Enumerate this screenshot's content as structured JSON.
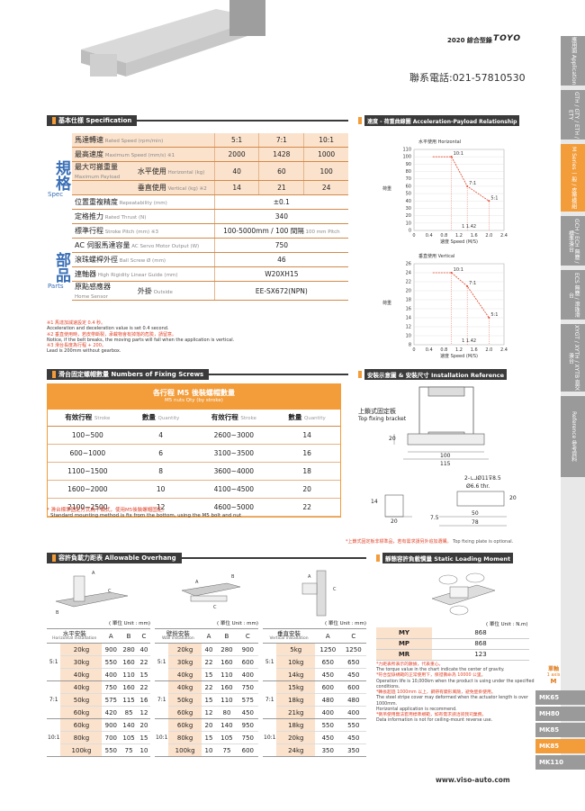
{
  "header": {
    "catalog": "2020 綜合型錄",
    "brand": "TOYO",
    "phone": "聯系電話:021-57810530",
    "website": "www.viso-auto.com"
  },
  "sidebar_tabs": [
    {
      "label": "應用面 Application",
      "active": false
    },
    {
      "label": "GTH / GTY / ETH / ETY",
      "active": false
    },
    {
      "label": "M Series 一般 / 皮帶模組",
      "active": true
    },
    {
      "label": "GCH / ECH 無塵 / 標準滑台",
      "active": false
    },
    {
      "label": "ECS 無塵 / 滾珠滑台",
      "active": false
    },
    {
      "label": "XYGT / XYTH / XYTB 直交滑台",
      "active": false
    },
    {
      "label": "Reference 參考資料",
      "active": false
    }
  ],
  "model_tabs": [
    {
      "label": "MK65",
      "active": false
    },
    {
      "label": "MH80",
      "active": false
    },
    {
      "label": "MK85",
      "active": false
    },
    {
      "label": "MK85",
      "active": true
    },
    {
      "label": "MK110",
      "active": false
    }
  ],
  "spec": {
    "title": "基本仕樣 Specification",
    "group1": "規格",
    "group1_en": "Spec",
    "group2": "部品",
    "group2_en": "Parts",
    "rows": [
      {
        "label": "馬達轉速",
        "en": "Rated Speed (rpm/min)",
        "values": [
          "5:1",
          "7:1",
          "10:1"
        ]
      },
      {
        "label": "最高速度",
        "en": "Maximum Speed (mm/s) ※1",
        "values": [
          "2000",
          "1428",
          "1000"
        ]
      },
      {
        "label": "最大可搬重量",
        "en": "Maximum Payload",
        "sub": "水平使用",
        "sub_en": "Horizontal (kg)",
        "values": [
          "40",
          "60",
          "100"
        ]
      },
      {
        "label": "",
        "en": "",
        "sub": "垂直使用",
        "sub_en": "Vertical (kg) ※2",
        "values": [
          "14",
          "21",
          "24"
        ]
      },
      {
        "label": "位置重複精度",
        "en": "Repeatability (mm)",
        "value": "±0.1"
      },
      {
        "label": "定格推力",
        "en": "Rated Thrust (N)",
        "value": "340"
      },
      {
        "label": "標準行程",
        "en": "Stroke Pitch (mm) ※3",
        "value": "100-5000mm / 100 間隔",
        "value_en": "100 mm Pitch"
      },
      {
        "label": "AC 伺服馬達容量",
        "en": "AC Servo Motor Output (W)",
        "value": "750"
      },
      {
        "label": "滾珠螺桿外徑",
        "en": "Ball Screw Ø (mm)",
        "value": "46"
      },
      {
        "label": "連軸器",
        "en": "High Rigidity Linear Guide (mm)",
        "value": "W20XH15"
      },
      {
        "label": "原點感應器",
        "en": "Home Sensor",
        "sub": "外掛",
        "sub_en": "Outside",
        "value": "EE-SX672(NPN)"
      }
    ],
    "notes": [
      "※1 馬達加減速設定 0.4 秒。",
      "Acceleration and deceleration value is set 0.4 second.",
      "※2 垂直使用時，若皮帶斷裂，承載物會有掉落的危險，請留意。",
      "Notice, if the belt breaks, the moving parts will fall when the application is vertical.",
      "※3 滑台長度為行程 + 200。",
      "Lead is 200mm without gearbox."
    ]
  },
  "fixing": {
    "title": "滑台固定螺帽數量 Numbers of Fixing Screws",
    "head": "各行程 M5 後裝螺帽數量",
    "head_en": "M5 nuts Qty (by stroke)",
    "col_stroke": "有效行程",
    "col_stroke_en": "Stroke",
    "col_qty": "數量",
    "col_qty_en": "Quantity",
    "rows": [
      [
        "100~500",
        "4",
        "2600~3000",
        "14"
      ],
      [
        "600~1000",
        "6",
        "3100~3500",
        "16"
      ],
      [
        "1100~1500",
        "8",
        "3600~4000",
        "18"
      ],
      [
        "1600~2000",
        "10",
        "4100~4500",
        "20"
      ],
      [
        "2100~2500",
        "12",
        "4600~5000",
        "22"
      ]
    ],
    "note": "* 滑台標準固定方式為下鎖式，使用M5後裝螺帽固定。",
    "note_en": "Standard mounting method is fix from the bottom, using the M5 bolt and nut"
  },
  "chart": {
    "title": "速度 - 荷重曲線圖 Acceleration-Payload Relationship",
    "ylabel": "荷重",
    "ylabel_en": "Payload(kg)",
    "xlabel": "速度",
    "xlabel_en": "Speed (M/S)"
  },
  "chart_data": [
    {
      "type": "line",
      "title": "水平使用",
      "subtitle": "Horizontal",
      "xlabel": "速度 Speed (M/S)",
      "ylabel": "荷重 Payload(kg)",
      "x_ticks": [
        "0",
        "0.4",
        "0.8",
        "1.2",
        "1.6",
        "2.0",
        "2.4"
      ],
      "y_ticks": [
        "0",
        "10",
        "20",
        "30",
        "40",
        "50",
        "60",
        "70",
        "80",
        "90",
        "100",
        "110"
      ],
      "xlim": [
        0,
        2.4
      ],
      "ylim": [
        0,
        110
      ],
      "point_labels": [
        "10:1",
        "7:1",
        "5:1"
      ],
      "drop_labels": [
        "1",
        "1.42",
        "2"
      ],
      "series": [
        {
          "points": [
            [
              0.5,
              100
            ],
            [
              1.0,
              100
            ],
            [
              1.42,
              60
            ],
            [
              2.0,
              40
            ]
          ]
        }
      ]
    },
    {
      "type": "line",
      "title": "垂直使用",
      "subtitle": "Vertical",
      "xlabel": "速度 Speed (M/S)",
      "ylabel": "荷重 Payload(kg)",
      "x_ticks": [
        "0",
        "0.4",
        "0.8",
        "1.2",
        "1.6",
        "2.0",
        "2.4"
      ],
      "y_ticks": [
        "8",
        "10",
        "12",
        "14",
        "16",
        "18",
        "20",
        "22",
        "24",
        "26"
      ],
      "xlim": [
        0,
        2.4
      ],
      "ylim": [
        8,
        26
      ],
      "point_labels": [
        "10:1",
        "7:1",
        "5:1"
      ],
      "drop_labels": [
        "1",
        "1.42",
        "2"
      ],
      "series": [
        {
          "points": [
            [
              0.5,
              24
            ],
            [
              1.0,
              24
            ],
            [
              1.42,
              21
            ],
            [
              2.0,
              14
            ]
          ]
        }
      ]
    }
  ],
  "install": {
    "title": "安裝示意圖 & 安裝尺寸 Installation Reference",
    "bracket_label": "上鎖式固定板",
    "bracket_en": "Top fixing bracket",
    "dims": [
      "20",
      "100",
      "115",
      "14",
      "20",
      "7.5",
      "50",
      "78",
      "20"
    ],
    "hole_label": "2-∟⅃Ø11⊽8.5",
    "hole_sub": "Ø6.6 thr.",
    "note": "*上鎖式固定板非標準品，若有需求請另外追加選購。",
    "note_en": "Top fixing plate is optional."
  },
  "overhang": {
    "title": "容許負載力距表 Allowable Overhang",
    "unit": "( 單位 Unit : mm)",
    "tables": [
      {
        "name": "水平安裝",
        "name_en": "Horizontal installation",
        "cols": [
          "A",
          "B",
          "C"
        ],
        "groups": [
          {
            "ratio": "5:1",
            "rows": [
              [
                "20kg",
                "900",
                "280",
                "40"
              ],
              [
                "30kg",
                "550",
                "160",
                "22"
              ],
              [
                "40kg",
                "400",
                "110",
                "15"
              ]
            ]
          },
          {
            "ratio": "7:1",
            "rows": [
              [
                "40kg",
                "750",
                "160",
                "22"
              ],
              [
                "50kg",
                "575",
                "115",
                "16"
              ],
              [
                "60kg",
                "420",
                "85",
                "12"
              ]
            ]
          },
          {
            "ratio": "10:1",
            "rows": [
              [
                "60kg",
                "900",
                "140",
                "20"
              ],
              [
                "80kg",
                "700",
                "105",
                "15"
              ],
              [
                "100kg",
                "550",
                "75",
                "10"
              ]
            ]
          }
        ]
      },
      {
        "name": "壁掛安裝",
        "name_en": "Wall installation",
        "cols": [
          "A",
          "B",
          "C"
        ],
        "groups": [
          {
            "ratio": "5:1",
            "rows": [
              [
                "20kg",
                "40",
                "280",
                "900"
              ],
              [
                "30kg",
                "22",
                "160",
                "600"
              ],
              [
                "40kg",
                "15",
                "110",
                "400"
              ]
            ]
          },
          {
            "ratio": "7:1",
            "rows": [
              [
                "40kg",
                "22",
                "160",
                "750"
              ],
              [
                "50kg",
                "15",
                "110",
                "575"
              ],
              [
                "60kg",
                "12",
                "80",
                "450"
              ]
            ]
          },
          {
            "ratio": "10:1",
            "rows": [
              [
                "60kg",
                "20",
                "140",
                "950"
              ],
              [
                "80kg",
                "15",
                "105",
                "750"
              ],
              [
                "100kg",
                "10",
                "75",
                "600"
              ]
            ]
          }
        ]
      },
      {
        "name": "垂直安裝",
        "name_en": "Vertical installation",
        "cols": [
          "A",
          "C"
        ],
        "groups": [
          {
            "ratio": "5:1",
            "rows": [
              [
                "5kg",
                "1250",
                "1250"
              ],
              [
                "10kg",
                "650",
                "650"
              ],
              [
                "14kg",
                "450",
                "450"
              ]
            ]
          },
          {
            "ratio": "7:1",
            "rows": [
              [
                "15kg",
                "600",
                "600"
              ],
              [
                "18kg",
                "480",
                "480"
              ],
              [
                "21kg",
                "400",
                "400"
              ]
            ]
          },
          {
            "ratio": "10:1",
            "rows": [
              [
                "18kg",
                "550",
                "550"
              ],
              [
                "20kg",
                "450",
                "450"
              ],
              [
                "24kg",
                "350",
                "350"
              ]
            ]
          }
        ]
      }
    ]
  },
  "static": {
    "title": "靜態容許負載慣量 Static Loading Moment",
    "unit": "( 單位 Unit : N.m)",
    "rows": [
      [
        "MY",
        "868"
      ],
      [
        "MP",
        "868"
      ],
      [
        "MR",
        "123"
      ]
    ],
    "notes": [
      "*力距表所表示的數據，代表重心。",
      "The torque value in the chart indicate the center of gravity.",
      "*符合型錄規範的正常使用下，保證壽命為 10000 公里。",
      "Operation life is 10,000km when the product is using under the specified conditions.",
      "*轉長超過 1000mm 以上，鋼帶有變形風險，避免壁掛使用。",
      "The steel stripe cover may deformed when the actuator length is over 1000mm.",
      "Horizontal application is recommend.",
      "*倒吊使用無法套用標準規範，如有需求請洽詢我司業務。",
      "Data information is not for ceiling-mount reverse use."
    ],
    "unit_label": "單軸",
    "unit_label_en": "1 axis",
    "unit_letter": "M"
  }
}
